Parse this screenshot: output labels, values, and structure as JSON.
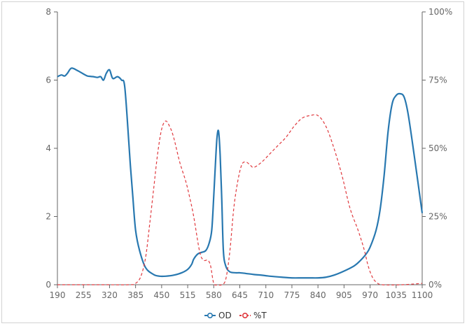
{
  "chart_data": {
    "type": "line",
    "title": "",
    "xlabel": "",
    "ylabel": "",
    "x_ticks": [
      "190",
      "255",
      "320",
      "385",
      "450",
      "515",
      "580",
      "645",
      "710",
      "775",
      "840",
      "905",
      "970",
      "1035",
      "1100"
    ],
    "y_left_ticks": [
      "0",
      "2",
      "4",
      "6",
      "8"
    ],
    "y_right_ticks": [
      "0%",
      "25%",
      "50%",
      "75%",
      "100%"
    ],
    "xlim": [
      190,
      1100
    ],
    "ylim_left": [
      0,
      8
    ],
    "ylim_right": [
      0,
      100
    ],
    "legend_position": "bottom-center",
    "colors": {
      "OD": "#2878b0",
      "T": "#e0393e"
    },
    "series": [
      {
        "name": "OD",
        "axis": "left",
        "style": "solid",
        "x": [
          190,
          200,
          208,
          215,
          225,
          240,
          255,
          265,
          280,
          290,
          298,
          305,
          312,
          320,
          328,
          340,
          350,
          358,
          368,
          372,
          378,
          385,
          395,
          410,
          430,
          445,
          460,
          480,
          500,
          515,
          525,
          530,
          540,
          550,
          560,
          568,
          575,
          580,
          584,
          588,
          592,
          596,
          600,
          604,
          610,
          620,
          635,
          645,
          660,
          680,
          700,
          720,
          750,
          775,
          800,
          820,
          840,
          860,
          880,
          905,
          930,
          945,
          960,
          970,
          985,
          995,
          1005,
          1015,
          1025,
          1035,
          1045,
          1055,
          1065,
          1080,
          1100
        ],
        "y": [
          6.1,
          6.15,
          6.12,
          6.2,
          6.35,
          6.28,
          6.18,
          6.12,
          6.1,
          6.08,
          6.1,
          6.0,
          6.2,
          6.3,
          6.05,
          6.1,
          6.0,
          5.8,
          4.2,
          3.5,
          2.6,
          1.6,
          1.0,
          0.5,
          0.3,
          0.25,
          0.25,
          0.28,
          0.35,
          0.45,
          0.6,
          0.75,
          0.9,
          0.95,
          1.0,
          1.2,
          1.6,
          2.6,
          3.5,
          4.3,
          4.5,
          3.8,
          2.5,
          1.0,
          0.55,
          0.38,
          0.35,
          0.35,
          0.33,
          0.3,
          0.28,
          0.25,
          0.22,
          0.2,
          0.2,
          0.2,
          0.2,
          0.22,
          0.28,
          0.4,
          0.55,
          0.7,
          0.9,
          1.1,
          1.6,
          2.2,
          3.2,
          4.5,
          5.3,
          5.55,
          5.6,
          5.5,
          5.0,
          3.8,
          2.1
        ]
      },
      {
        "name": "%T",
        "axis": "right",
        "style": "dashed",
        "x": [
          190,
          300,
          370,
          385,
          398,
          410,
          420,
          430,
          440,
          450,
          460,
          470,
          480,
          495,
          510,
          520,
          530,
          545,
          555,
          565,
          572,
          580,
          590,
          600,
          610,
          620,
          630,
          640,
          650,
          660,
          670,
          680,
          700,
          720,
          740,
          760,
          780,
          800,
          820,
          840,
          860,
          880,
          900,
          920,
          940,
          955,
          965,
          975,
          985,
          1000,
          1050,
          1100
        ],
        "y": [
          0,
          0,
          0,
          0.5,
          3,
          10,
          22,
          35,
          48,
          57,
          60,
          58,
          54,
          45,
          38,
          32,
          25,
          12,
          9,
          9,
          7,
          0.5,
          0,
          0,
          2,
          12,
          28,
          38,
          44,
          45,
          44,
          43,
          45,
          48,
          51,
          54,
          58,
          61,
          62,
          62,
          58,
          50,
          40,
          28,
          20,
          13,
          7,
          3,
          1,
          0,
          0,
          0.5
        ]
      }
    ]
  }
}
